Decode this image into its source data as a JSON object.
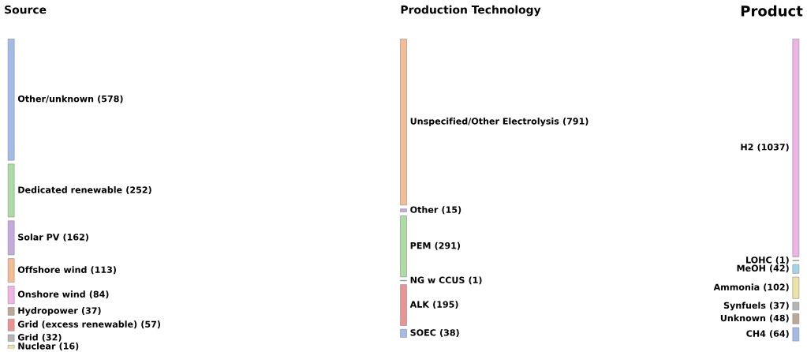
{
  "chart_data": {
    "type": "other",
    "categories": [
      "Other/unknown",
      "Dedicated renewable",
      "Solar PV",
      "Offshore wind",
      "Onshore wind",
      "Hydropower",
      "Grid (excess renewable)",
      "Grid",
      "Nuclear",
      "Unspecified/Other Electrolysis",
      "Other",
      "PEM",
      "NG w CCUS",
      "ALK",
      "SOEC",
      "H2",
      "LOHC",
      "MeOH",
      "Ammonia",
      "Synfuels",
      "Unknown",
      "CH4"
    ],
    "series": [
      {
        "name": "Source",
        "values": [
          578,
          252,
          162,
          113,
          84,
          37,
          57,
          32,
          16,
          null,
          null,
          null,
          null,
          null,
          null,
          null,
          null,
          null,
          null,
          null,
          null,
          null
        ],
        "value_labels": [
          "(578)",
          "(252)",
          "(162)",
          "(113)",
          "(84)",
          "(37)",
          "(57)",
          "(32)",
          "(16)",
          null,
          null,
          null,
          null,
          null,
          null,
          null,
          null,
          null,
          null,
          null,
          null,
          null
        ],
        "colors": [
          "#a4bbe8",
          "#acdca4",
          "#c4aadc",
          "#f4bc94",
          "#f0b4e4",
          "#bca894",
          "#e89494",
          "#b4b4b4",
          "#ece4a4",
          null,
          null,
          null,
          null,
          null,
          null,
          null,
          null,
          null,
          null,
          null,
          null,
          null
        ]
      },
      {
        "name": "Production Technology",
        "values": [
          null,
          null,
          null,
          null,
          null,
          null,
          null,
          null,
          null,
          791,
          15,
          291,
          1,
          195,
          38,
          null,
          null,
          null,
          null,
          null,
          null,
          null
        ],
        "value_labels": [
          null,
          null,
          null,
          null,
          null,
          null,
          null,
          null,
          null,
          "(791)",
          "(15)",
          "(291)",
          "(1)",
          "(195)",
          "(38)",
          null,
          null,
          null,
          null,
          null,
          null,
          null
        ],
        "colors": [
          null,
          null,
          null,
          null,
          null,
          null,
          null,
          null,
          null,
          "#f4bc94",
          "#c4aadc",
          "#acdca4",
          "#b4b4b4",
          "#e89494",
          "#a4bbe8",
          null,
          null,
          null,
          null,
          null,
          null,
          null
        ]
      },
      {
        "name": "Product",
        "values": [
          null,
          null,
          null,
          null,
          null,
          null,
          null,
          null,
          null,
          null,
          null,
          null,
          null,
          null,
          null,
          1037,
          1,
          42,
          102,
          37,
          48,
          64
        ],
        "value_labels": [
          null,
          null,
          null,
          null,
          null,
          null,
          null,
          null,
          null,
          null,
          null,
          null,
          null,
          null,
          null,
          "(1037)",
          "(1)",
          "(42)",
          "(102)",
          "(37)",
          "(48)",
          "(64)"
        ],
        "colors": [
          null,
          null,
          null,
          null,
          null,
          null,
          null,
          null,
          null,
          null,
          null,
          null,
          null,
          null,
          null,
          "#ecb4e4",
          "#b4b4b4",
          "#a4d4e8",
          "#ece4a4",
          "#b4b4b4",
          "#bca894",
          "#a4bbe8"
        ]
      }
    ]
  }
}
